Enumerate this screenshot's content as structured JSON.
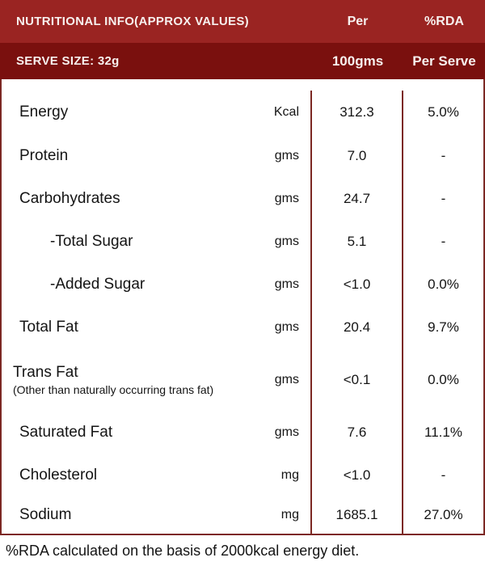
{
  "header": {
    "title": "NUTRITIONAL INFO(APPROX VALUES)",
    "col_per": "Per",
    "col_rda": "%RDA",
    "serve_size": "SERVE SIZE: 32g",
    "col_per_sub": "100gms",
    "col_rda_sub": "Per Serve"
  },
  "colors": {
    "band_top": "#9a2422",
    "band_bottom": "#7a100e",
    "line": "#7c2823",
    "text_light": "#f7f0ee",
    "text_dark": "#141414"
  },
  "table": {
    "rows": [
      {
        "label": "Energy",
        "unit": "Kcal",
        "per_100g": "312.3",
        "rda_per_serve": "5.0%"
      },
      {
        "label": "Protein",
        "unit": "gms",
        "per_100g": "7.0",
        "rda_per_serve": "-"
      },
      {
        "label": "Carbohydrates",
        "unit": "gms",
        "per_100g": "24.7",
        "rda_per_serve": "-"
      },
      {
        "label": "-Total Sugar",
        "unit": "gms",
        "per_100g": "5.1",
        "rda_per_serve": "-"
      },
      {
        "label": "-Added Sugar",
        "unit": "gms",
        "per_100g": "<1.0",
        "rda_per_serve": "0.0%"
      },
      {
        "label": "Total Fat",
        "unit": "gms",
        "per_100g": "20.4",
        "rda_per_serve": "9.7%"
      },
      {
        "label": "Trans Fat",
        "note": "(Other than naturally occurring trans fat)",
        "unit": "gms",
        "per_100g": "<0.1",
        "rda_per_serve": "0.0%"
      },
      {
        "label": "Saturated Fat",
        "unit": "gms",
        "per_100g": "7.6",
        "rda_per_serve": "11.1%"
      },
      {
        "label": "Cholesterol",
        "unit": "mg",
        "per_100g": "<1.0",
        "rda_per_serve": "-"
      },
      {
        "label": "Sodium",
        "unit": "mg",
        "per_100g": "1685.1",
        "rda_per_serve": "27.0%"
      }
    ]
  },
  "footer": {
    "note": "%RDA calculated on the basis of 2000kcal energy diet."
  }
}
